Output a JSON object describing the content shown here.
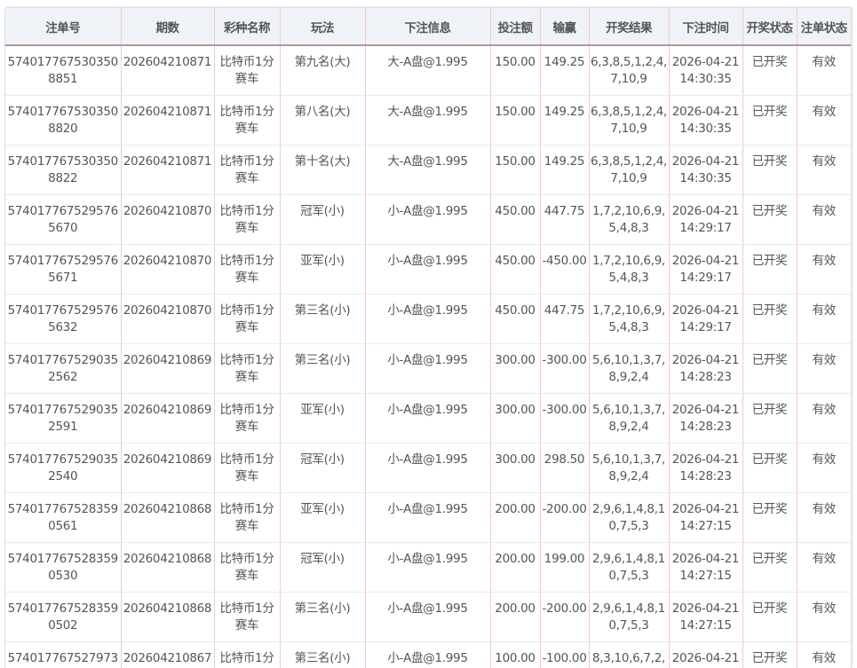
{
  "table": {
    "headers": [
      "注单号",
      "期数",
      "彩种名称",
      "玩法",
      "下注信息",
      "投注额",
      "输赢",
      "开奖结果",
      "下注时间",
      "开奖状态",
      "注单状态"
    ],
    "rows": [
      [
        "5740177675303508851",
        "202604210871",
        "比特币1分赛车",
        "第九名(大)",
        "大-A盘@1.995",
        "150.00",
        "149.25",
        "6,3,8,5,1,2,4,7,10,9",
        "2026-04-21 14:30:35",
        "已开奖",
        "有效"
      ],
      [
        "5740177675303508820",
        "202604210871",
        "比特币1分赛车",
        "第八名(大)",
        "大-A盘@1.995",
        "150.00",
        "149.25",
        "6,3,8,5,1,2,4,7,10,9",
        "2026-04-21 14:30:35",
        "已开奖",
        "有效"
      ],
      [
        "5740177675303508822",
        "202604210871",
        "比特币1分赛车",
        "第十名(大)",
        "大-A盘@1.995",
        "150.00",
        "149.25",
        "6,3,8,5,1,2,4,7,10,9",
        "2026-04-21 14:30:35",
        "已开奖",
        "有效"
      ],
      [
        "5740177675295765670",
        "202604210870",
        "比特币1分赛车",
        "冠军(小)",
        "小-A盘@1.995",
        "450.00",
        "447.75",
        "1,7,2,10,6,9,5,4,8,3",
        "2026-04-21 14:29:17",
        "已开奖",
        "有效"
      ],
      [
        "5740177675295765671",
        "202604210870",
        "比特币1分赛车",
        "亚军(小)",
        "小-A盘@1.995",
        "450.00",
        "-450.00",
        "1,7,2,10,6,9,5,4,8,3",
        "2026-04-21 14:29:17",
        "已开奖",
        "有效"
      ],
      [
        "5740177675295765632",
        "202604210870",
        "比特币1分赛车",
        "第三名(小)",
        "小-A盘@1.995",
        "450.00",
        "447.75",
        "1,7,2,10,6,9,5,4,8,3",
        "2026-04-21 14:29:17",
        "已开奖",
        "有效"
      ],
      [
        "5740177675290352562",
        "202604210869",
        "比特币1分赛车",
        "第三名(小)",
        "小-A盘@1.995",
        "300.00",
        "-300.00",
        "5,6,10,1,3,7,8,9,2,4",
        "2026-04-21 14:28:23",
        "已开奖",
        "有效"
      ],
      [
        "5740177675290352591",
        "202604210869",
        "比特币1分赛车",
        "亚军(小)",
        "小-A盘@1.995",
        "300.00",
        "-300.00",
        "5,6,10,1,3,7,8,9,2,4",
        "2026-04-21 14:28:23",
        "已开奖",
        "有效"
      ],
      [
        "5740177675290352540",
        "202604210869",
        "比特币1分赛车",
        "冠军(小)",
        "小-A盘@1.995",
        "300.00",
        "298.50",
        "5,6,10,1,3,7,8,9,2,4",
        "2026-04-21 14:28:23",
        "已开奖",
        "有效"
      ],
      [
        "5740177675283590561",
        "202604210868",
        "比特币1分赛车",
        "亚军(小)",
        "小-A盘@1.995",
        "200.00",
        "-200.00",
        "2,9,6,1,4,8,10,7,5,3",
        "2026-04-21 14:27:15",
        "已开奖",
        "有效"
      ],
      [
        "5740177675283590530",
        "202604210868",
        "比特币1分赛车",
        "冠军(小)",
        "小-A盘@1.995",
        "200.00",
        "199.00",
        "2,9,6,1,4,8,10,7,5,3",
        "2026-04-21 14:27:15",
        "已开奖",
        "有效"
      ],
      [
        "5740177675283590502",
        "202604210868",
        "比特币1分赛车",
        "第三名(小)",
        "小-A盘@1.995",
        "200.00",
        "-200.00",
        "2,9,6,1,4,8,10,7,5,3",
        "2026-04-21 14:27:15",
        "已开奖",
        "有效"
      ],
      [
        "574017767527973",
        "202604210867",
        "比特币1分",
        "第三名(小)",
        "小-A盘@1.995",
        "100.00",
        "-100.00",
        "8,3,10,6,7,2,4",
        "2026-04-21",
        "已开奖",
        "有效"
      ]
    ]
  }
}
